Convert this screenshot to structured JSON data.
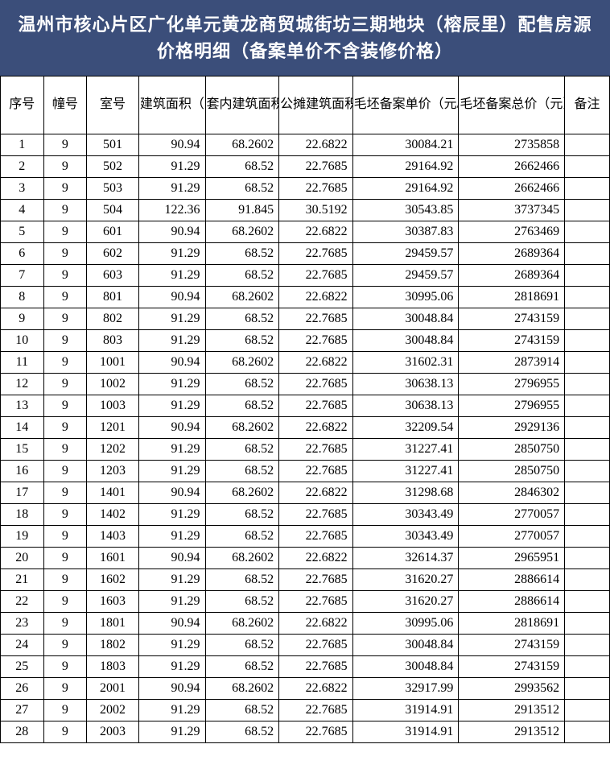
{
  "title": "温州市核心片区广化单元黄龙商贸城街坊三期地块（榕辰里）配售房源价格明细（备案单价不含装修价格）",
  "headers": {
    "seq": "序号",
    "bldg": "幢号",
    "room": "室号",
    "area": "建筑面积（㎡）",
    "inner": "套内建筑面积（㎡）",
    "pub": "公摊建筑面积（㎡）",
    "price": "毛坯备案单价（元/㎡）",
    "total": "毛坯备案总价（元）",
    "note": "备注"
  },
  "rows": [
    {
      "seq": "1",
      "bldg": "9",
      "room": "501",
      "area": "90.94",
      "inner": "68.2602",
      "pub": "22.6822",
      "price": "30084.21",
      "total": "2735858",
      "note": ""
    },
    {
      "seq": "2",
      "bldg": "9",
      "room": "502",
      "area": "91.29",
      "inner": "68.52",
      "pub": "22.7685",
      "price": "29164.92",
      "total": "2662466",
      "note": ""
    },
    {
      "seq": "3",
      "bldg": "9",
      "room": "503",
      "area": "91.29",
      "inner": "68.52",
      "pub": "22.7685",
      "price": "29164.92",
      "total": "2662466",
      "note": ""
    },
    {
      "seq": "4",
      "bldg": "9",
      "room": "504",
      "area": "122.36",
      "inner": "91.845",
      "pub": "30.5192",
      "price": "30543.85",
      "total": "3737345",
      "note": ""
    },
    {
      "seq": "5",
      "bldg": "9",
      "room": "601",
      "area": "90.94",
      "inner": "68.2602",
      "pub": "22.6822",
      "price": "30387.83",
      "total": "2763469",
      "note": ""
    },
    {
      "seq": "6",
      "bldg": "9",
      "room": "602",
      "area": "91.29",
      "inner": "68.52",
      "pub": "22.7685",
      "price": "29459.57",
      "total": "2689364",
      "note": ""
    },
    {
      "seq": "7",
      "bldg": "9",
      "room": "603",
      "area": "91.29",
      "inner": "68.52",
      "pub": "22.7685",
      "price": "29459.57",
      "total": "2689364",
      "note": ""
    },
    {
      "seq": "8",
      "bldg": "9",
      "room": "801",
      "area": "90.94",
      "inner": "68.2602",
      "pub": "22.6822",
      "price": "30995.06",
      "total": "2818691",
      "note": ""
    },
    {
      "seq": "9",
      "bldg": "9",
      "room": "802",
      "area": "91.29",
      "inner": "68.52",
      "pub": "22.7685",
      "price": "30048.84",
      "total": "2743159",
      "note": ""
    },
    {
      "seq": "10",
      "bldg": "9",
      "room": "803",
      "area": "91.29",
      "inner": "68.52",
      "pub": "22.7685",
      "price": "30048.84",
      "total": "2743159",
      "note": ""
    },
    {
      "seq": "11",
      "bldg": "9",
      "room": "1001",
      "area": "90.94",
      "inner": "68.2602",
      "pub": "22.6822",
      "price": "31602.31",
      "total": "2873914",
      "note": ""
    },
    {
      "seq": "12",
      "bldg": "9",
      "room": "1002",
      "area": "91.29",
      "inner": "68.52",
      "pub": "22.7685",
      "price": "30638.13",
      "total": "2796955",
      "note": ""
    },
    {
      "seq": "13",
      "bldg": "9",
      "room": "1003",
      "area": "91.29",
      "inner": "68.52",
      "pub": "22.7685",
      "price": "30638.13",
      "total": "2796955",
      "note": ""
    },
    {
      "seq": "14",
      "bldg": "9",
      "room": "1201",
      "area": "90.94",
      "inner": "68.2602",
      "pub": "22.6822",
      "price": "32209.54",
      "total": "2929136",
      "note": ""
    },
    {
      "seq": "15",
      "bldg": "9",
      "room": "1202",
      "area": "91.29",
      "inner": "68.52",
      "pub": "22.7685",
      "price": "31227.41",
      "total": "2850750",
      "note": ""
    },
    {
      "seq": "16",
      "bldg": "9",
      "room": "1203",
      "area": "91.29",
      "inner": "68.52",
      "pub": "22.7685",
      "price": "31227.41",
      "total": "2850750",
      "note": ""
    },
    {
      "seq": "17",
      "bldg": "9",
      "room": "1401",
      "area": "90.94",
      "inner": "68.2602",
      "pub": "22.6822",
      "price": "31298.68",
      "total": "2846302",
      "note": ""
    },
    {
      "seq": "18",
      "bldg": "9",
      "room": "1402",
      "area": "91.29",
      "inner": "68.52",
      "pub": "22.7685",
      "price": "30343.49",
      "total": "2770057",
      "note": ""
    },
    {
      "seq": "19",
      "bldg": "9",
      "room": "1403",
      "area": "91.29",
      "inner": "68.52",
      "pub": "22.7685",
      "price": "30343.49",
      "total": "2770057",
      "note": ""
    },
    {
      "seq": "20",
      "bldg": "9",
      "room": "1601",
      "area": "90.94",
      "inner": "68.2602",
      "pub": "22.6822",
      "price": "32614.37",
      "total": "2965951",
      "note": ""
    },
    {
      "seq": "21",
      "bldg": "9",
      "room": "1602",
      "area": "91.29",
      "inner": "68.52",
      "pub": "22.7685",
      "price": "31620.27",
      "total": "2886614",
      "note": ""
    },
    {
      "seq": "22",
      "bldg": "9",
      "room": "1603",
      "area": "91.29",
      "inner": "68.52",
      "pub": "22.7685",
      "price": "31620.27",
      "total": "2886614",
      "note": ""
    },
    {
      "seq": "23",
      "bldg": "9",
      "room": "1801",
      "area": "90.94",
      "inner": "68.2602",
      "pub": "22.6822",
      "price": "30995.06",
      "total": "2818691",
      "note": ""
    },
    {
      "seq": "24",
      "bldg": "9",
      "room": "1802",
      "area": "91.29",
      "inner": "68.52",
      "pub": "22.7685",
      "price": "30048.84",
      "total": "2743159",
      "note": ""
    },
    {
      "seq": "25",
      "bldg": "9",
      "room": "1803",
      "area": "91.29",
      "inner": "68.52",
      "pub": "22.7685",
      "price": "30048.84",
      "total": "2743159",
      "note": ""
    },
    {
      "seq": "26",
      "bldg": "9",
      "room": "2001",
      "area": "90.94",
      "inner": "68.2602",
      "pub": "22.6822",
      "price": "32917.99",
      "total": "2993562",
      "note": ""
    },
    {
      "seq": "27",
      "bldg": "9",
      "room": "2002",
      "area": "91.29",
      "inner": "68.52",
      "pub": "22.7685",
      "price": "31914.91",
      "total": "2913512",
      "note": ""
    },
    {
      "seq": "28",
      "bldg": "9",
      "room": "2003",
      "area": "91.29",
      "inner": "68.52",
      "pub": "22.7685",
      "price": "31914.91",
      "total": "2913512",
      "note": ""
    }
  ],
  "style": {
    "title_bg": "#3b4e7a",
    "title_color": "#ffffff",
    "border_color": "#000000",
    "background": "#ffffff",
    "title_fontsize": 22,
    "header_fontsize": 16,
    "cell_fontsize": 16
  }
}
